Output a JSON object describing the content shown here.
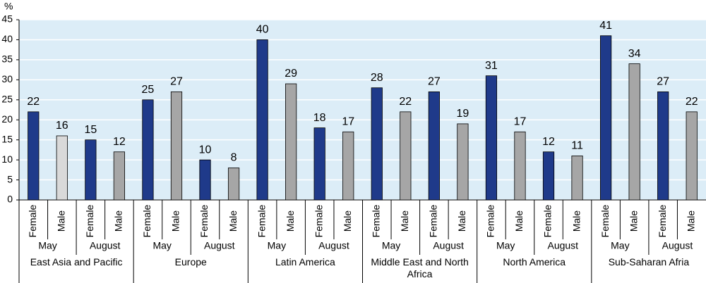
{
  "chart_data": {
    "type": "bar",
    "y_label": "%",
    "regions": [
      "East Asia and Pacific",
      "Europe",
      "Latin America",
      "Middle East and North Africa",
      "North America",
      "Sub-Saharan Afria"
    ],
    "months": [
      "May",
      "August",
      "May",
      "August",
      "May",
      "August",
      "May",
      "August",
      "May",
      "August",
      "May",
      "August"
    ],
    "categories": [
      "Female",
      "Male",
      "Female",
      "Male",
      "Female",
      "Male",
      "Female",
      "Male",
      "Female",
      "Male",
      "Female",
      "Male",
      "Female",
      "Male",
      "Female",
      "Male",
      "Female",
      "Male",
      "Female",
      "Male",
      "Female",
      "Male",
      "Female",
      "Male"
    ],
    "values": [
      22,
      16,
      15,
      12,
      25,
      27,
      10,
      8,
      40,
      29,
      18,
      17,
      28,
      22,
      27,
      19,
      31,
      17,
      12,
      11,
      41,
      34,
      27,
      22
    ],
    "colors": [
      "#1f3a8a",
      "#d9d9d9",
      "#1f3a8a",
      "#a6a6a6",
      "#1f3a8a",
      "#a6a6a6",
      "#1f3a8a",
      "#a6a6a6",
      "#1f3a8a",
      "#a6a6a6",
      "#1f3a8a",
      "#a6a6a6",
      "#1f3a8a",
      "#a6a6a6",
      "#1f3a8a",
      "#a6a6a6",
      "#1f3a8a",
      "#a6a6a6",
      "#1f3a8a",
      "#a6a6a6",
      "#1f3a8a",
      "#a6a6a6",
      "#1f3a8a",
      "#a6a6a6"
    ],
    "ylim": [
      0,
      45
    ],
    "yticks": [
      0,
      5,
      10,
      15,
      20,
      25,
      30,
      35,
      40,
      45
    ],
    "grid": true
  }
}
